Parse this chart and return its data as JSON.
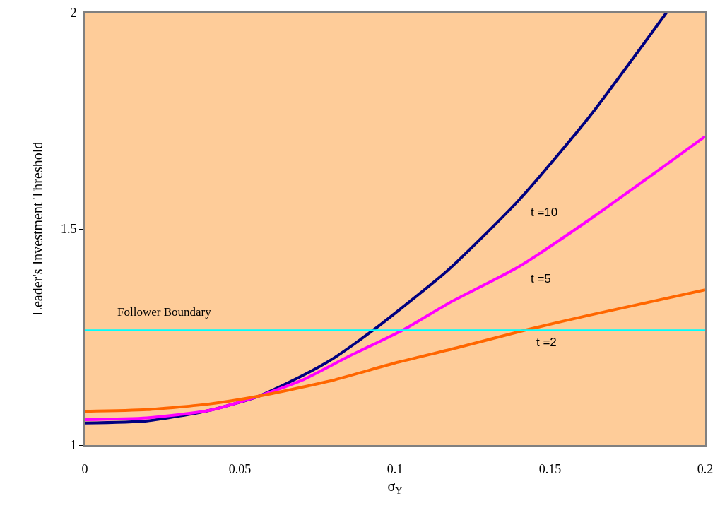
{
  "chart_data": {
    "type": "line",
    "xlabel": "σ$_{Y}$",
    "ylabel": "Leader's Investment Threshold",
    "xlim": [
      0,
      0.2
    ],
    "ylim": [
      1,
      2
    ],
    "xticks": [
      0,
      0.05,
      0.1,
      0.15,
      0.2
    ],
    "yticks": [
      1,
      1.5,
      2
    ],
    "grid": false,
    "legend": false,
    "marker": "none",
    "line_style": "solid",
    "series": [
      {
        "name": "t =10",
        "color": "#000080",
        "x": [
          0,
          0.02,
          0.04,
          0.056,
          0.07,
          0.08,
          0.093,
          0.1,
          0.117,
          0.14,
          0.1624,
          0.1875
        ],
        "values": [
          1.051,
          1.056,
          1.08,
          1.113,
          1.16,
          1.2,
          1.266,
          1.305,
          1.404,
          1.567,
          1.757,
          2.0
        ]
      },
      {
        "name": "t =5",
        "color": "#ff00ff",
        "x": [
          0,
          0.02,
          0.04,
          0.056,
          0.07,
          0.085,
          0.1025,
          0.117,
          0.14,
          0.1624,
          0.2
        ],
        "values": [
          1.059,
          1.063,
          1.08,
          1.113,
          1.15,
          1.205,
          1.266,
          1.327,
          1.413,
          1.52,
          1.714
        ]
      },
      {
        "name": "t =2",
        "color": "#ff6600",
        "x": [
          0,
          0.02,
          0.04,
          0.056,
          0.08,
          0.1,
          0.12,
          0.142,
          0.1624,
          0.2
        ],
        "values": [
          1.078,
          1.082,
          1.095,
          1.113,
          1.15,
          1.19,
          1.225,
          1.266,
          1.3,
          1.359
        ]
      }
    ],
    "ref_lines": [
      {
        "axis": "y",
        "value": 1.266,
        "label": "Follower Boundary",
        "color": "#00ffff",
        "line_style": "solid"
      }
    ]
  }
}
